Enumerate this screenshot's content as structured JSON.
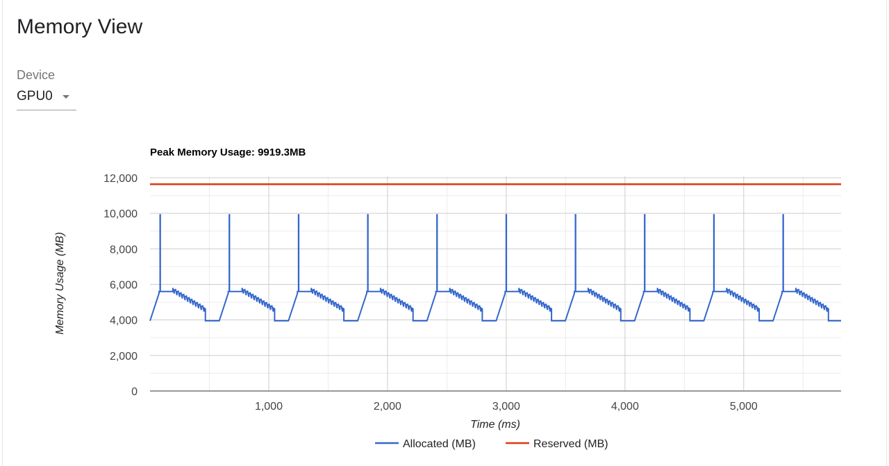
{
  "page": {
    "title": "Memory View"
  },
  "device": {
    "label": "Device",
    "selected": "GPU0"
  },
  "chart_data": {
    "type": "line",
    "title": "Peak Memory Usage: 9919.3MB",
    "xlabel": "Time (ms)",
    "ylabel": "Memory Usage (MB)",
    "xlim": [
      0,
      5820
    ],
    "ylim": [
      0,
      12000
    ],
    "x_ticks": [
      1000,
      2000,
      3000,
      4000,
      5000
    ],
    "x_tick_labels": [
      "1,000",
      "2,000",
      "3,000",
      "4,000",
      "5,000"
    ],
    "y_ticks": [
      0,
      2000,
      4000,
      6000,
      8000,
      10000,
      12000
    ],
    "y_tick_labels": [
      "0",
      "2,000",
      "4,000",
      "6,000",
      "8,000",
      "10,000",
      "12,000"
    ],
    "grid": true,
    "legend_position": "bottom",
    "series": [
      {
        "name": "Allocated (MB)",
        "color": "#3366cc",
        "pattern": {
          "period_ms": 583,
          "first_cycle_start_ms": 0,
          "baseline_mb": 3950,
          "ramp_end_mb": 5500,
          "plateau_mb": 5600,
          "peak_mb": 9919.3,
          "sawtooth_start_mb": 5800,
          "sawtooth_end_mb": 4700,
          "sawtooth_teeth": 12
        },
        "cycle_starts_ms": [
          0,
          583,
          1166,
          1749,
          2332,
          2915,
          3498,
          4081,
          4664,
          5247
        ],
        "peak_mb": 9919.3
      },
      {
        "name": "Reserved (MB)",
        "color": "#dc3912",
        "x": [
          0,
          5820
        ],
        "y": [
          11640,
          11640
        ]
      }
    ]
  }
}
